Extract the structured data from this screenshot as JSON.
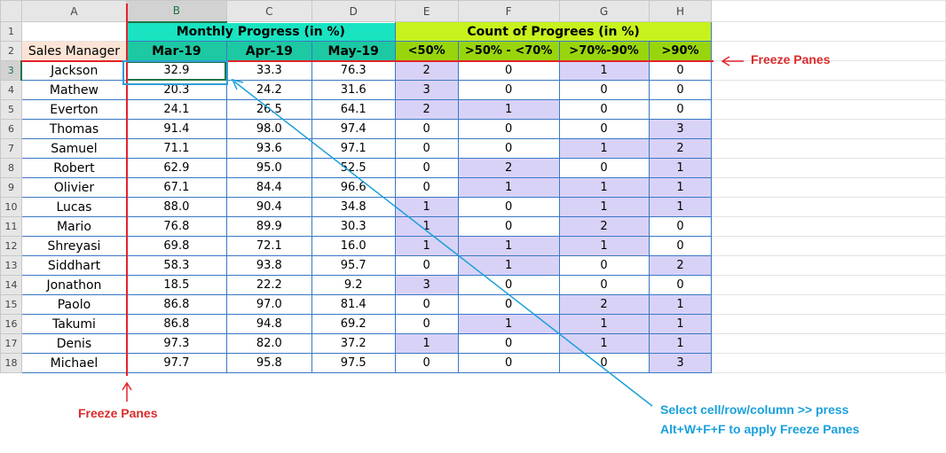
{
  "columns": [
    "A",
    "B",
    "C",
    "D",
    "E",
    "F",
    "G",
    "H"
  ],
  "header": {
    "monthly_progress": "Monthly Progress (in %)",
    "count_progress": "Count of Progrees (in %)",
    "sales_manager": "Sales Manager",
    "months": [
      "Mar-19",
      "Apr-19",
      "May-19"
    ],
    "buckets": [
      "<50%",
      ">50% - <70%",
      ">70%-90%",
      ">90%"
    ]
  },
  "rows": [
    {
      "name": "Jackson",
      "mar": "32.9",
      "apr": "33.3",
      "may": "76.3",
      "c1": "2",
      "c2": "0",
      "c3": "1",
      "c4": "0"
    },
    {
      "name": "Mathew",
      "mar": "20.3",
      "apr": "24.2",
      "may": "31.6",
      "c1": "3",
      "c2": "0",
      "c3": "0",
      "c4": "0"
    },
    {
      "name": "Everton",
      "mar": "24.1",
      "apr": "26.5",
      "may": "64.1",
      "c1": "2",
      "c2": "1",
      "c3": "0",
      "c4": "0"
    },
    {
      "name": "Thomas",
      "mar": "91.4",
      "apr": "98.0",
      "may": "97.4",
      "c1": "0",
      "c2": "0",
      "c3": "0",
      "c4": "3"
    },
    {
      "name": "Samuel",
      "mar": "71.1",
      "apr": "93.6",
      "may": "97.1",
      "c1": "0",
      "c2": "0",
      "c3": "1",
      "c4": "2"
    },
    {
      "name": "Robert",
      "mar": "62.9",
      "apr": "95.0",
      "may": "52.5",
      "c1": "0",
      "c2": "2",
      "c3": "0",
      "c4": "1"
    },
    {
      "name": "Olivier",
      "mar": "67.1",
      "apr": "84.4",
      "may": "96.6",
      "c1": "0",
      "c2": "1",
      "c3": "1",
      "c4": "1"
    },
    {
      "name": "Lucas",
      "mar": "88.0",
      "apr": "90.4",
      "may": "34.8",
      "c1": "1",
      "c2": "0",
      "c3": "1",
      "c4": "1"
    },
    {
      "name": "Mario",
      "mar": "76.8",
      "apr": "89.9",
      "may": "30.3",
      "c1": "1",
      "c2": "0",
      "c3": "2",
      "c4": "0"
    },
    {
      "name": "Shreyasi",
      "mar": "69.8",
      "apr": "72.1",
      "may": "16.0",
      "c1": "1",
      "c2": "1",
      "c3": "1",
      "c4": "0"
    },
    {
      "name": "Siddhart",
      "mar": "58.3",
      "apr": "93.8",
      "may": "95.7",
      "c1": "0",
      "c2": "1",
      "c3": "0",
      "c4": "2"
    },
    {
      "name": "Jonathon",
      "mar": "18.5",
      "apr": "22.2",
      "may": "9.2",
      "c1": "3",
      "c2": "0",
      "c3": "0",
      "c4": "0"
    },
    {
      "name": "Paolo",
      "mar": "86.8",
      "apr": "97.0",
      "may": "81.4",
      "c1": "0",
      "c2": "0",
      "c3": "2",
      "c4": "1"
    },
    {
      "name": "Takumi",
      "mar": "86.8",
      "apr": "94.8",
      "may": "69.2",
      "c1": "0",
      "c2": "1",
      "c3": "1",
      "c4": "1"
    },
    {
      "name": "Denis",
      "mar": "97.3",
      "apr": "82.0",
      "may": "37.2",
      "c1": "1",
      "c2": "0",
      "c3": "1",
      "c4": "1"
    },
    {
      "name": "Michael",
      "mar": "97.7",
      "apr": "95.8",
      "may": "97.5",
      "c1": "0",
      "c2": "0",
      "c3": "0",
      "c4": "3"
    }
  ],
  "highlight_color": "#d9d2f7",
  "annotations": {
    "freeze_right": "Freeze Panes",
    "freeze_bottom": "Freeze Panes",
    "instruction_line1": "Select cell/row/column >> press",
    "instruction_line2": "Alt+W+F+F to apply Freeze Panes"
  },
  "colors": {
    "freeze_line": "#e2242c",
    "arrow": "#1aa0dc",
    "active_cell": "#217346"
  }
}
